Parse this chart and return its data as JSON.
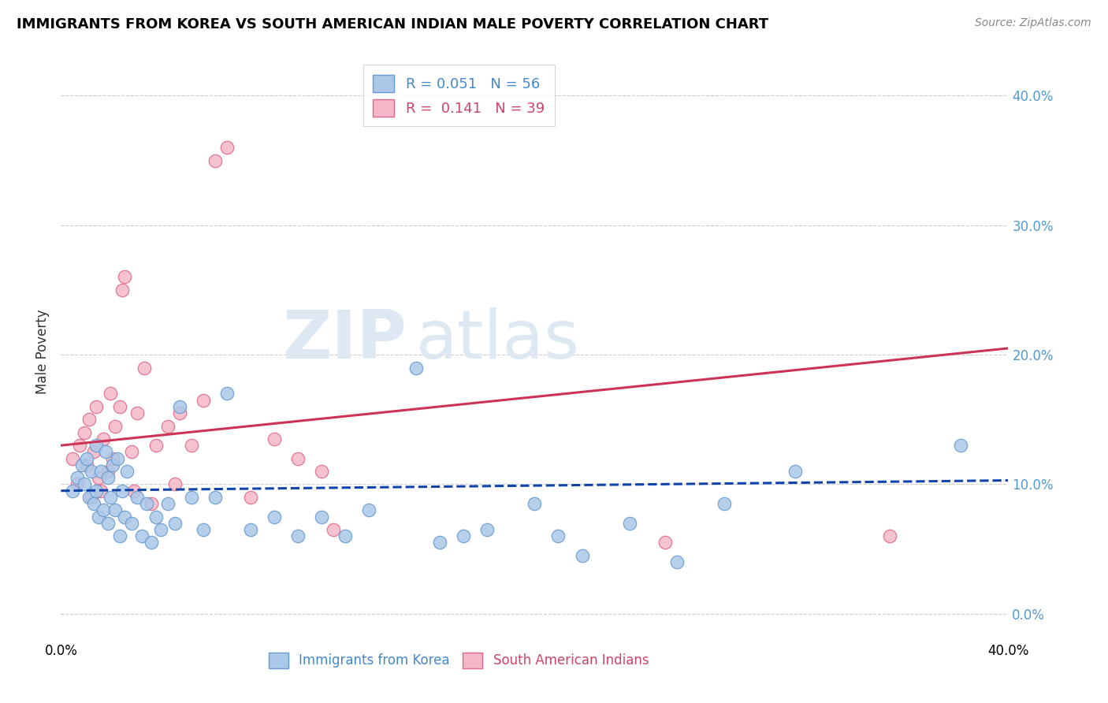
{
  "title": "IMMIGRANTS FROM KOREA VS SOUTH AMERICAN INDIAN MALE POVERTY CORRELATION CHART",
  "source": "Source: ZipAtlas.com",
  "ylabel": "Male Poverty",
  "xrange": [
    0.0,
    0.4
  ],
  "yrange": [
    -0.02,
    0.425
  ],
  "ytick_values": [
    0.0,
    0.1,
    0.2,
    0.3,
    0.4
  ],
  "ytick_labels": [
    "0.0%",
    "10.0%",
    "20.0%",
    "30.0%",
    "40.0%"
  ],
  "legend_r1": "0.051",
  "legend_n1": "56",
  "legend_r2": "0.141",
  "legend_n2": "39",
  "korea_color": "#aac8e8",
  "korea_edge": "#6699cc",
  "sa_color": "#f5b8c8",
  "sa_edge": "#dd6688",
  "korea_line_color": "#1144aa",
  "sa_line_color": "#cc3355",
  "watermark_zip_color": "#dde8f2",
  "watermark_atlas_color": "#dde8f2",
  "korea_x": [
    0.005,
    0.007,
    0.009,
    0.01,
    0.011,
    0.012,
    0.013,
    0.014,
    0.015,
    0.015,
    0.016,
    0.017,
    0.018,
    0.019,
    0.02,
    0.02,
    0.021,
    0.022,
    0.023,
    0.024,
    0.025,
    0.026,
    0.027,
    0.028,
    0.03,
    0.032,
    0.034,
    0.036,
    0.038,
    0.04,
    0.042,
    0.045,
    0.048,
    0.05,
    0.055,
    0.06,
    0.065,
    0.07,
    0.08,
    0.09,
    0.1,
    0.11,
    0.12,
    0.13,
    0.15,
    0.16,
    0.17,
    0.18,
    0.2,
    0.21,
    0.22,
    0.24,
    0.26,
    0.28,
    0.31,
    0.38
  ],
  "korea_y": [
    0.095,
    0.105,
    0.115,
    0.1,
    0.12,
    0.09,
    0.11,
    0.085,
    0.13,
    0.095,
    0.075,
    0.11,
    0.08,
    0.125,
    0.07,
    0.105,
    0.09,
    0.115,
    0.08,
    0.12,
    0.06,
    0.095,
    0.075,
    0.11,
    0.07,
    0.09,
    0.06,
    0.085,
    0.055,
    0.075,
    0.065,
    0.085,
    0.07,
    0.16,
    0.09,
    0.065,
    0.09,
    0.17,
    0.065,
    0.075,
    0.06,
    0.075,
    0.06,
    0.08,
    0.19,
    0.055,
    0.06,
    0.065,
    0.085,
    0.06,
    0.045,
    0.07,
    0.04,
    0.085,
    0.11,
    0.13
  ],
  "sa_x": [
    0.005,
    0.007,
    0.008,
    0.01,
    0.011,
    0.012,
    0.013,
    0.014,
    0.015,
    0.016,
    0.017,
    0.018,
    0.02,
    0.021,
    0.022,
    0.023,
    0.025,
    0.026,
    0.027,
    0.03,
    0.031,
    0.032,
    0.035,
    0.038,
    0.04,
    0.045,
    0.048,
    0.05,
    0.055,
    0.06,
    0.065,
    0.07,
    0.08,
    0.09,
    0.1,
    0.11,
    0.115,
    0.255,
    0.35
  ],
  "sa_y": [
    0.12,
    0.1,
    0.13,
    0.14,
    0.115,
    0.15,
    0.09,
    0.125,
    0.16,
    0.105,
    0.095,
    0.135,
    0.11,
    0.17,
    0.12,
    0.145,
    0.16,
    0.25,
    0.26,
    0.125,
    0.095,
    0.155,
    0.19,
    0.085,
    0.13,
    0.145,
    0.1,
    0.155,
    0.13,
    0.165,
    0.35,
    0.36,
    0.09,
    0.135,
    0.12,
    0.11,
    0.065,
    0.055,
    0.06
  ]
}
